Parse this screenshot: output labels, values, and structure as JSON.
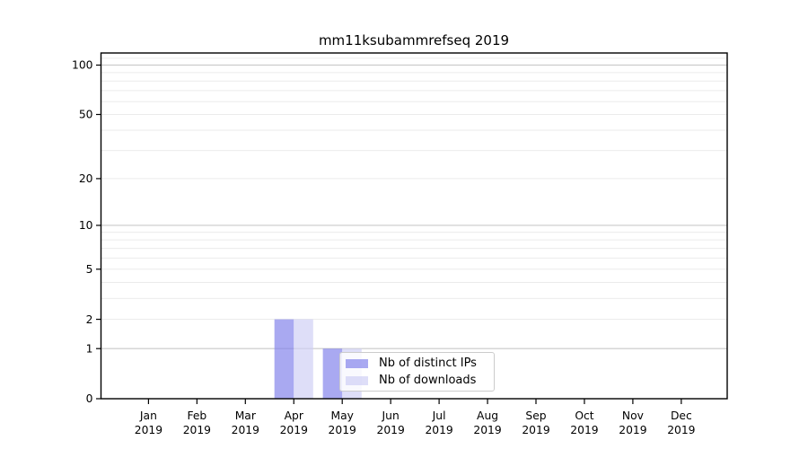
{
  "figure": {
    "title": "mm11ksubammrefseq 2019"
  },
  "chart_data": {
    "type": "bar",
    "title": "mm11ksubammrefseq 2019",
    "x_axis": {
      "months": [
        "Jan",
        "Feb",
        "Mar",
        "Apr",
        "May",
        "Jun",
        "Jul",
        "Aug",
        "Sep",
        "Oct",
        "Nov",
        "Dec"
      ],
      "year": "2019"
    },
    "y_axis": {
      "scale": "log1p",
      "tick_labels": [
        0,
        1,
        2,
        5,
        10,
        20,
        50,
        100
      ],
      "range": [
        0,
        118
      ],
      "major_gridlines": [
        1,
        10,
        100
      ],
      "minor_gridlines": [
        2,
        3,
        4,
        5,
        6,
        7,
        8,
        9,
        20,
        30,
        40,
        50,
        60,
        70,
        80,
        90,
        110
      ]
    },
    "series": [
      {
        "name": "Nb of distinct IPs",
        "color": "#7d7dea",
        "fill_opacity": 0.66,
        "values": [
          0,
          0,
          0,
          2,
          1,
          0,
          0,
          0,
          0,
          0,
          0,
          0
        ]
      },
      {
        "name": "Nb of downloads",
        "color": "#cdcdf4",
        "fill_opacity": 0.66,
        "values": [
          0,
          0,
          0,
          2,
          1,
          0,
          0,
          0,
          0,
          0,
          0,
          0
        ]
      }
    ],
    "legend": {
      "labels": [
        "Nb of distinct IPs",
        "Nb of downloads"
      ],
      "position": "lower center-right inside plot"
    },
    "grid": true
  }
}
